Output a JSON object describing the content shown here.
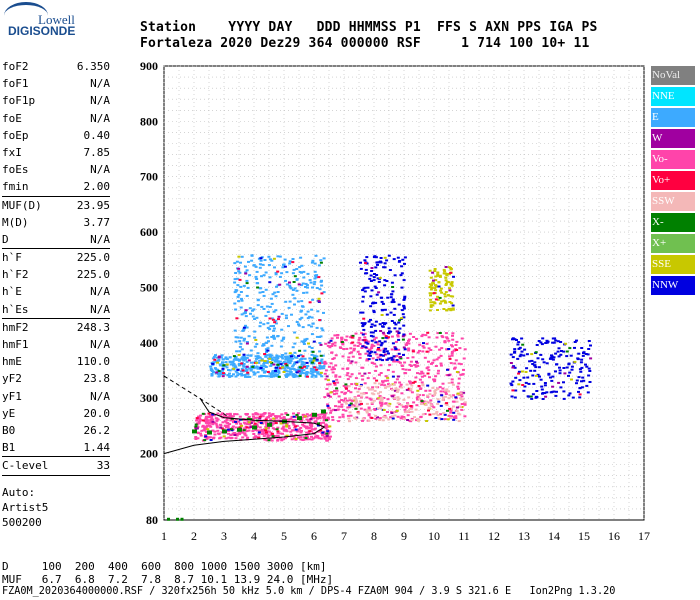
{
  "logo": {
    "top": "Lowell",
    "bottom": "DIGISONDE"
  },
  "header": {
    "line1": "Station    YYYY DAY   DDD HHMMSS P1  FFS S AXN PPS IGA PS",
    "line2": "Fortaleza 2020 Dez29 364 000000 RSF     1 714 100 10+ 11"
  },
  "params": [
    {
      "k": "foF2",
      "v": "6.350"
    },
    {
      "k": "foF1",
      "v": "N/A"
    },
    {
      "k": "foF1p",
      "v": "N/A"
    },
    {
      "k": "foE",
      "v": "N/A"
    },
    {
      "k": "foEp",
      "v": "0.40"
    },
    {
      "k": "fxI",
      "v": "7.85"
    },
    {
      "k": "foEs",
      "v": "N/A"
    },
    {
      "k": "fmin",
      "v": "2.00"
    },
    {
      "sep": true
    },
    {
      "k": "MUF(D)",
      "v": "23.95"
    },
    {
      "k": "M(D)",
      "v": "3.77"
    },
    {
      "k": "D",
      "v": "N/A"
    },
    {
      "sep": true
    },
    {
      "k": "h`F",
      "v": "225.0"
    },
    {
      "k": "h`F2",
      "v": "225.0"
    },
    {
      "k": "h`E",
      "v": "N/A"
    },
    {
      "k": "h`Es",
      "v": "N/A"
    },
    {
      "sep": true
    },
    {
      "k": "hmF2",
      "v": "248.3"
    },
    {
      "k": "hmF1",
      "v": "N/A"
    },
    {
      "k": "hmE",
      "v": "110.0"
    },
    {
      "k": "yF2",
      "v": "23.8"
    },
    {
      "k": "yF1",
      "v": "N/A"
    },
    {
      "k": "yE",
      "v": "20.0"
    },
    {
      "k": "B0",
      "v": "26.2"
    },
    {
      "k": "B1",
      "v": "1.44"
    },
    {
      "sep": true
    },
    {
      "k": "C-level",
      "v": "33"
    },
    {
      "sep": true
    }
  ],
  "auto": [
    "Auto:",
    "Artist5",
    "500200"
  ],
  "legend": [
    {
      "label": "NoVal",
      "color": "#808080"
    },
    {
      "label": "NNE",
      "color": "#00e5ff"
    },
    {
      "label": "E",
      "color": "#3daaff"
    },
    {
      "label": "W",
      "color": "#a000a0"
    },
    {
      "label": "Vo-",
      "color": "#ff44aa"
    },
    {
      "label": "Vo+",
      "color": "#ff0040"
    },
    {
      "label": "SSW",
      "color": "#f4b8b8"
    },
    {
      "label": "X-",
      "color": "#008000"
    },
    {
      "label": "X+",
      "color": "#70c050"
    },
    {
      "label": "SSE",
      "color": "#c8c800"
    },
    {
      "label": "NNW",
      "color": "#0000e0"
    }
  ],
  "footer": {
    "d_row": "D     100  200  400  600  800 1000 1500 3000 [km]",
    "muf_row": "MUF   6.7  6.8  7.2  7.8  8.7 10.1 13.9 24.0 [MHz]",
    "info": "FZA0M_2020364000000.RSF / 320fx256h 50 kHz 5.0 km / DPS-4 FZA0M 904 / 3.9 S 321.6 E   Ion2Png 1.3.20"
  },
  "chart_data": {
    "type": "scatter",
    "title": "",
    "xlabel": "",
    "ylabel": "",
    "xlim": [
      1,
      17
    ],
    "ylim": [
      80,
      900
    ],
    "x_ticks": [
      1,
      2,
      3,
      4,
      5,
      6,
      7,
      8,
      9,
      10,
      11,
      12,
      13,
      14,
      15,
      16,
      17
    ],
    "y_ticks": [
      80,
      200,
      300,
      400,
      500,
      600,
      700,
      800,
      900
    ],
    "grid": true,
    "legend_position": "right",
    "clusters": [
      {
        "name": "E",
        "x": [
          2.5,
          6.3
        ],
        "y": [
          340,
          380
        ]
      },
      {
        "name": "E",
        "x": [
          3.3,
          6.3
        ],
        "y": [
          380,
          560
        ]
      },
      {
        "name": "Vo-",
        "x": [
          2.0,
          6.5
        ],
        "y": [
          225,
          275
        ]
      },
      {
        "name": "Vo-",
        "x": [
          6.3,
          11.0
        ],
        "y": [
          260,
          420
        ]
      },
      {
        "name": "SSW",
        "x": [
          7.0,
          11.0
        ],
        "y": [
          260,
          330
        ]
      },
      {
        "name": "NNW",
        "x": [
          12.5,
          15.2
        ],
        "y": [
          300,
          410
        ]
      },
      {
        "name": "SSE",
        "x": [
          9.8,
          10.6
        ],
        "y": [
          460,
          540
        ]
      },
      {
        "name": "NNW",
        "x": [
          7.5,
          9.0
        ],
        "y": [
          370,
          560
        ]
      }
    ],
    "trace_o": {
      "x": [
        2.0,
        2.5,
        3.0,
        3.5,
        4.0,
        4.5,
        5.0,
        5.5,
        6.0,
        6.3
      ],
      "y": [
        240,
        238,
        240,
        243,
        247,
        252,
        258,
        264,
        270,
        276
      ]
    },
    "profile": {
      "x": [
        1.0,
        2.0,
        3.0,
        4.0,
        5.0,
        6.0,
        6.35,
        6.0,
        5.0,
        4.0,
        3.0,
        2.5,
        2.2
      ],
      "y": [
        200,
        215,
        222,
        226,
        230,
        236,
        248,
        255,
        258,
        260,
        265,
        275,
        300
      ]
    }
  }
}
